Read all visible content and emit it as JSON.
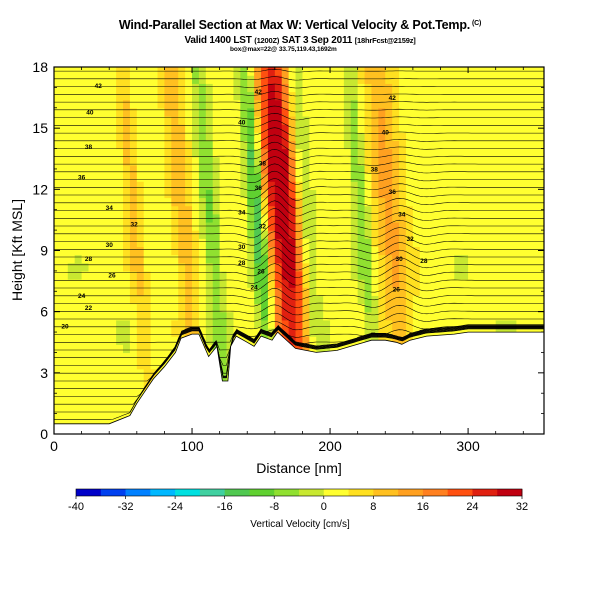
{
  "chart_data": {
    "type": "heatmap",
    "title": "Wind-Parallel Section at Max W: Vertical Velocity & Pot.Temp.",
    "title_mark": "(C)",
    "subtitle_main": "Valid 1400 LST",
    "subtitle_utc": "(1200Z)",
    "subtitle_date": "SAT 3 Sep 2011",
    "subtitle_fcst": "[18hrFcst@2159z]",
    "section_info": "box@max=22@ 33.75,119.43,1692m",
    "xlabel": "Distance [nm]",
    "ylabel": "Height [Kft MSL]",
    "xlim": [
      0,
      355
    ],
    "ylim": [
      0,
      18
    ],
    "x_ticks": [
      0,
      100,
      200,
      300
    ],
    "y_ticks": [
      0,
      3,
      6,
      9,
      12,
      15,
      18
    ],
    "colorbar": {
      "label": "Vertical Velocity [cm/s]",
      "range": [
        -40,
        32
      ],
      "tick_labels": [
        "-40",
        "-32",
        "-24",
        "-16",
        "-8",
        "0",
        "8",
        "16",
        "24",
        "32"
      ],
      "colors": [
        "#0000c8",
        "#0040f0",
        "#0080ff",
        "#00b8ff",
        "#00e0e0",
        "#40d0a0",
        "#50c850",
        "#60d030",
        "#90e030",
        "#c8e830",
        "#ffff30",
        "#ffe020",
        "#ffc020",
        "#ffa020",
        "#ff8020",
        "#ff5010",
        "#e02010",
        "#c00010"
      ]
    },
    "terrain": [
      [
        0,
        0.5
      ],
      [
        40,
        0.5
      ],
      [
        55,
        0.9
      ],
      [
        60,
        1.5
      ],
      [
        65,
        2.0
      ],
      [
        72,
        2.7
      ],
      [
        80,
        3.3
      ],
      [
        88,
        4.0
      ],
      [
        92,
        4.7
      ],
      [
        100,
        4.9
      ],
      [
        105,
        4.9
      ],
      [
        112,
        3.8
      ],
      [
        118,
        4.3
      ],
      [
        122,
        2.6
      ],
      [
        126,
        2.6
      ],
      [
        128,
        4.3
      ],
      [
        132,
        4.8
      ],
      [
        140,
        4.5
      ],
      [
        145,
        4.3
      ],
      [
        150,
        4.8
      ],
      [
        158,
        4.6
      ],
      [
        162,
        5.0
      ],
      [
        175,
        4.2
      ],
      [
        190,
        4.0
      ],
      [
        205,
        4.1
      ],
      [
        215,
        4.3
      ],
      [
        225,
        4.5
      ],
      [
        230,
        4.6
      ],
      [
        240,
        4.6
      ],
      [
        248,
        4.5
      ],
      [
        252,
        4.4
      ],
      [
        258,
        4.6
      ],
      [
        270,
        4.8
      ],
      [
        290,
        4.9
      ],
      [
        300,
        5.0
      ],
      [
        320,
        5.0
      ],
      [
        355,
        5.0
      ]
    ],
    "updrafts": [
      {
        "center_x": 170,
        "half_width_nm": 10,
        "max_cm_s": 30
      },
      {
        "center_x": 158,
        "half_width_nm": 9,
        "max_cm_s": 14
      },
      {
        "center_x": 245,
        "half_width_nm": 12,
        "max_cm_s": 12
      },
      {
        "center_x": 95,
        "half_width_nm": 8,
        "max_cm_s": 10
      },
      {
        "center_x": 60,
        "half_width_nm": 6,
        "max_cm_s": 8
      }
    ],
    "downdrafts": [
      {
        "center_x": 150,
        "half_width_nm": 6,
        "min_cm_s": -22
      },
      {
        "center_x": 225,
        "half_width_nm": 5,
        "min_cm_s": -10
      },
      {
        "center_x": 115,
        "half_width_nm": 6,
        "min_cm_s": -10
      },
      {
        "center_x": 185,
        "half_width_nm": 5,
        "min_cm_s": -8
      }
    ],
    "isentrope_labels": [
      {
        "x": 32,
        "y": 17.1,
        "text": "42"
      },
      {
        "x": 26,
        "y": 15.8,
        "text": "40"
      },
      {
        "x": 25,
        "y": 14.1,
        "text": "38"
      },
      {
        "x": 20,
        "y": 12.6,
        "text": "36"
      },
      {
        "x": 40,
        "y": 11.1,
        "text": "34"
      },
      {
        "x": 58,
        "y": 10.3,
        "text": "32"
      },
      {
        "x": 40,
        "y": 9.3,
        "text": "30"
      },
      {
        "x": 25,
        "y": 8.6,
        "text": "28"
      },
      {
        "x": 42,
        "y": 7.8,
        "text": "26"
      },
      {
        "x": 20,
        "y": 6.8,
        "text": "24"
      },
      {
        "x": 25,
        "y": 6.2,
        "text": "22"
      },
      {
        "x": 8,
        "y": 5.3,
        "text": "20"
      },
      {
        "x": 148,
        "y": 16.8,
        "text": "42"
      },
      {
        "x": 136,
        "y": 15.3,
        "text": "40"
      },
      {
        "x": 151,
        "y": 13.3,
        "text": "38"
      },
      {
        "x": 148,
        "y": 12.1,
        "text": "36"
      },
      {
        "x": 136,
        "y": 10.9,
        "text": "34"
      },
      {
        "x": 151,
        "y": 10.2,
        "text": "32"
      },
      {
        "x": 136,
        "y": 9.2,
        "text": "30"
      },
      {
        "x": 136,
        "y": 8.4,
        "text": "28"
      },
      {
        "x": 150,
        "y": 8.0,
        "text": "26"
      },
      {
        "x": 145,
        "y": 7.2,
        "text": "24"
      },
      {
        "x": 245,
        "y": 16.5,
        "text": "42"
      },
      {
        "x": 240,
        "y": 14.8,
        "text": "40"
      },
      {
        "x": 232,
        "y": 13.0,
        "text": "38"
      },
      {
        "x": 245,
        "y": 11.9,
        "text": "36"
      },
      {
        "x": 252,
        "y": 10.8,
        "text": "34"
      },
      {
        "x": 258,
        "y": 9.6,
        "text": "32"
      },
      {
        "x": 250,
        "y": 8.6,
        "text": "30"
      },
      {
        "x": 268,
        "y": 8.5,
        "text": "28"
      },
      {
        "x": 248,
        "y": 7.1,
        "text": "26"
      }
    ]
  }
}
